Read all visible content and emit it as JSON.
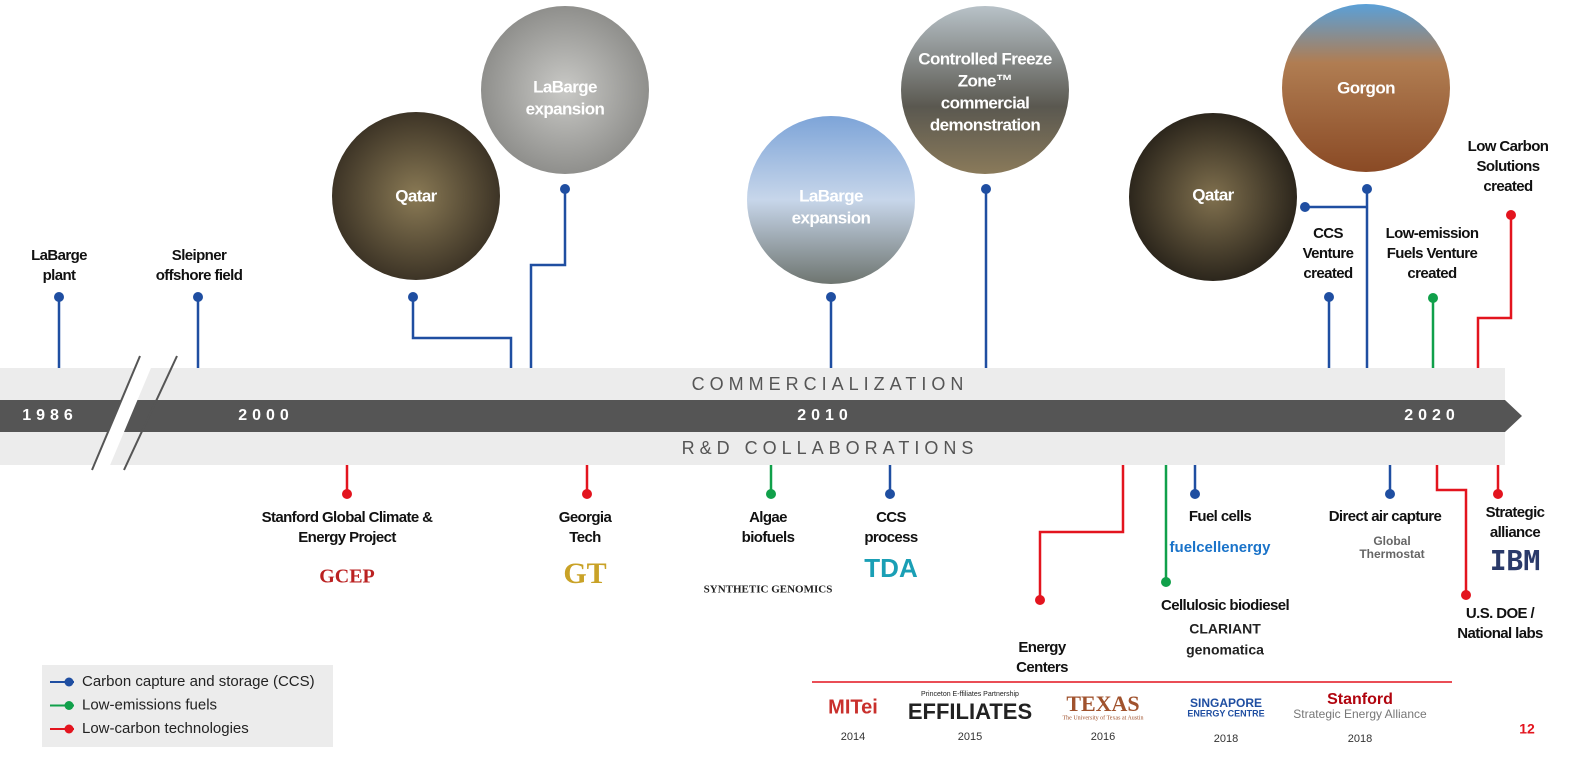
{
  "band": {
    "top": "COMMERCIALIZATION",
    "bottom": "R&D COLLABORATIONS",
    "years": [
      "1986",
      "2000",
      "2010",
      "2020"
    ]
  },
  "photos": [
    {
      "label": [
        "Qatar"
      ]
    },
    {
      "label": [
        "LaBarge",
        "expansion"
      ]
    },
    {
      "label": [
        "LaBarge",
        "expansion"
      ]
    },
    {
      "label": [
        "Controlled Freeze",
        "Zone™",
        "commercial",
        "demonstration"
      ]
    },
    {
      "label": [
        "Qatar"
      ]
    },
    {
      "label": [
        "Gorgon"
      ]
    }
  ],
  "milestones": [
    {
      "label": [
        "LaBarge",
        "plant"
      ],
      "color": "#1f4ea1"
    },
    {
      "label": [
        "Sleipner",
        "offshore field"
      ],
      "color": "#1f4ea1"
    },
    {
      "label": [
        "CCS",
        "Venture",
        "created"
      ],
      "color": "#1f4ea1"
    },
    {
      "label": [
        "Low-emission",
        "Fuels Venture",
        "created"
      ],
      "color": "#10a04a"
    },
    {
      "label": [
        "Low Carbon",
        "Solutions",
        "created"
      ],
      "color": "#e3141e"
    }
  ],
  "collaborations": [
    {
      "label": [
        "Stanford Global Climate &",
        "Energy Project"
      ],
      "logo": [
        "GCEP"
      ],
      "color": "#e3141e"
    },
    {
      "label": [
        "Georgia",
        "Tech"
      ],
      "logo": [
        "GT"
      ],
      "color": "#e3141e"
    },
    {
      "label": [
        "Algae",
        "biofuels"
      ],
      "logo": [
        "SYNTHETIC GENOMICS"
      ],
      "color": "#10a04a"
    },
    {
      "label": [
        "CCS",
        "process"
      ],
      "logo": [
        "TDA"
      ],
      "color": "#1f4ea1"
    },
    {
      "label": [
        "Energy",
        "Centers"
      ],
      "logo": [],
      "color": "#e3141e"
    },
    {
      "label": [
        "Cellulosic biodiesel"
      ],
      "logo": [
        "CLARIANT",
        "genomatica"
      ],
      "color": "#10a04a"
    },
    {
      "label": [
        "Fuel cells"
      ],
      "logo": [
        "fuelcellenergy"
      ],
      "color": "#1f4ea1"
    },
    {
      "label": [
        "Direct air capture"
      ],
      "logo": [
        "Global",
        "Thermostat"
      ],
      "color": "#1f4ea1"
    },
    {
      "label": [
        "Strategic",
        "alliance"
      ],
      "logo": [
        "IBM"
      ],
      "color": "#e3141e"
    },
    {
      "label": [
        "U.S. DOE /",
        "National labs"
      ],
      "logo": [],
      "color": "#e3141e"
    }
  ],
  "partners": [
    {
      "logo": [
        "MITei"
      ],
      "year": "2014"
    },
    {
      "logo": [
        "Princeton E-ffiliates Partnership",
        "EFFILIATES"
      ],
      "year": "2015"
    },
    {
      "logo": [
        "TEXAS",
        "The University of Texas at Austin"
      ],
      "year": "2016"
    },
    {
      "logo": [
        "SINGAPORE",
        "ENERGY CENTRE"
      ],
      "year": "2018"
    },
    {
      "logo": [
        "Stanford",
        "Strategic Energy Alliance"
      ],
      "year": "2018"
    }
  ],
  "legend": [
    {
      "label": "Carbon capture and storage (CCS)",
      "color": "#1f4ea1"
    },
    {
      "label": "Low-emissions fuels",
      "color": "#10a04a"
    },
    {
      "label": "Low-carbon technologies",
      "color": "#e3141e"
    }
  ],
  "page_number": "12"
}
